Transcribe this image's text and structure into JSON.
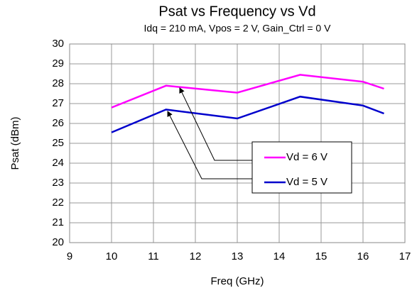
{
  "chart_data": {
    "type": "line",
    "title": "Psat vs Frequency vs Vd",
    "subtitle": "Idq = 210 mA, Vpos = 2 V, Gain_Ctrl  = 0 V",
    "xlabel": "Freq (GHz)",
    "ylabel": "Psat (dBm)",
    "x": [
      10,
      11.3,
      13,
      14.5,
      16,
      16.5
    ],
    "series": [
      {
        "name": "Vd = 6 V",
        "color": "#ff00ff",
        "values": [
          26.8,
          27.9,
          27.55,
          28.45,
          28.1,
          27.75
        ]
      },
      {
        "name": "Vd = 5 V",
        "color": "#0000cc",
        "values": [
          25.55,
          26.7,
          26.25,
          27.35,
          26.9,
          26.5
        ]
      }
    ],
    "xlim": [
      9,
      17
    ],
    "xticks": [
      9,
      10,
      11,
      12,
      13,
      14,
      15,
      16,
      17
    ],
    "ylim": [
      20,
      30
    ],
    "yticks": [
      20,
      21,
      22,
      23,
      24,
      25,
      26,
      27,
      28,
      29,
      30
    ],
    "grid": true
  }
}
